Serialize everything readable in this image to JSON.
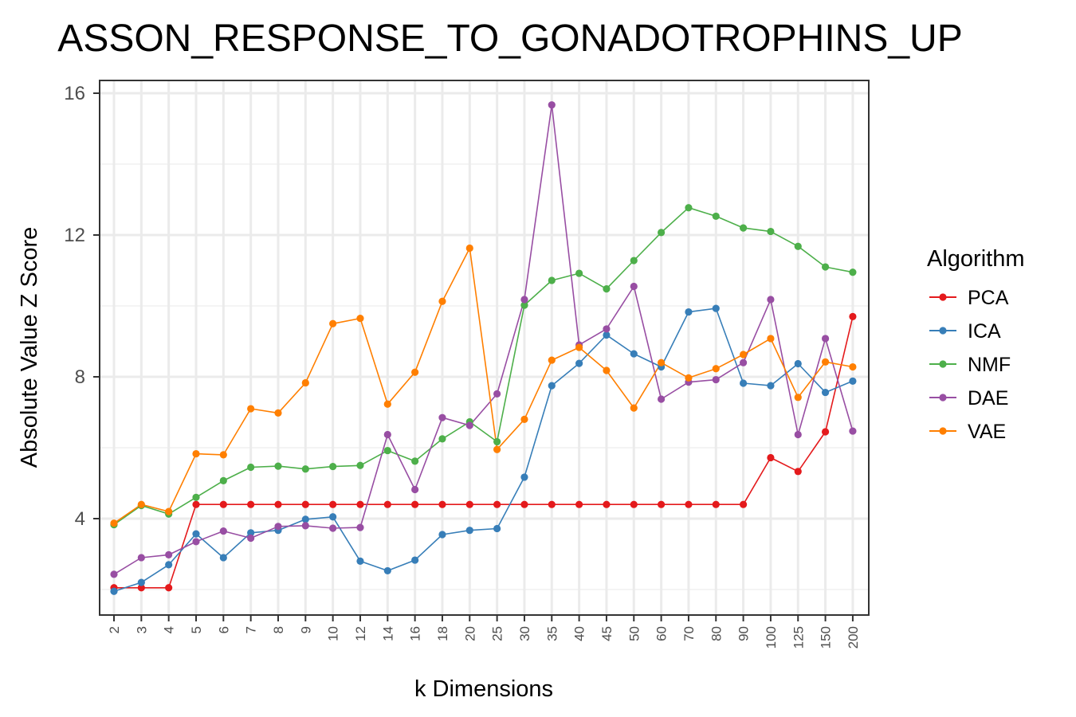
{
  "chart_data": {
    "type": "line",
    "title": "ASSON_RESPONSE_TO_GONADOTROPHINS_UP",
    "xlabel": "k Dimensions",
    "ylabel": "Absolute Value Z Score",
    "categories": [
      "2",
      "3",
      "4",
      "5",
      "6",
      "7",
      "8",
      "9",
      "10",
      "12",
      "14",
      "16",
      "18",
      "20",
      "25",
      "30",
      "35",
      "40",
      "45",
      "50",
      "60",
      "70",
      "80",
      "90",
      "100",
      "125",
      "150",
      "200"
    ],
    "yticks": [
      4,
      8,
      12,
      16
    ],
    "ylim": [
      1.25,
      16.3
    ],
    "grid": true,
    "legend": {
      "title": "Algorithm",
      "position": "right"
    },
    "series": [
      {
        "name": "PCA",
        "color": "#E41A1C",
        "values": [
          2.05,
          2.05,
          2.05,
          4.4,
          4.4,
          4.4,
          4.4,
          4.4,
          4.4,
          4.4,
          4.4,
          4.4,
          4.4,
          4.4,
          4.4,
          4.4,
          4.4,
          4.4,
          4.4,
          4.4,
          4.4,
          4.4,
          4.4,
          4.4,
          5.72,
          5.33,
          6.45,
          9.7
        ]
      },
      {
        "name": "ICA",
        "color": "#377EB8",
        "values": [
          1.95,
          2.2,
          2.7,
          3.57,
          2.9,
          3.6,
          3.67,
          3.98,
          4.05,
          2.8,
          2.53,
          2.83,
          3.55,
          3.67,
          3.72,
          5.17,
          7.75,
          8.38,
          9.18,
          8.65,
          8.28,
          9.83,
          9.93,
          7.82,
          7.75,
          8.37,
          7.56,
          7.88
        ]
      },
      {
        "name": "NMF",
        "color": "#4DAF4A",
        "values": [
          3.83,
          4.37,
          4.13,
          4.6,
          5.07,
          5.45,
          5.48,
          5.4,
          5.47,
          5.5,
          5.92,
          5.62,
          6.25,
          6.73,
          6.17,
          10.02,
          10.72,
          10.92,
          10.48,
          11.28,
          12.07,
          12.77,
          12.53,
          12.2,
          12.1,
          11.68,
          11.1,
          10.95
        ]
      },
      {
        "name": "DAE",
        "color": "#984EA3",
        "values": [
          2.43,
          2.9,
          2.98,
          3.35,
          3.65,
          3.45,
          3.78,
          3.8,
          3.73,
          3.75,
          6.37,
          4.82,
          6.85,
          6.63,
          7.52,
          10.18,
          15.67,
          8.9,
          9.35,
          10.55,
          7.37,
          7.85,
          7.92,
          8.4,
          10.18,
          6.37,
          9.08,
          6.47
        ]
      },
      {
        "name": "VAE",
        "color": "#FF7F00",
        "values": [
          3.87,
          4.4,
          4.2,
          5.83,
          5.8,
          7.1,
          6.98,
          7.83,
          9.5,
          9.65,
          7.23,
          8.13,
          10.13,
          11.63,
          5.95,
          6.8,
          8.47,
          8.83,
          8.18,
          7.12,
          8.4,
          7.97,
          8.23,
          8.63,
          9.08,
          7.42,
          8.42,
          8.28
        ]
      }
    ]
  }
}
